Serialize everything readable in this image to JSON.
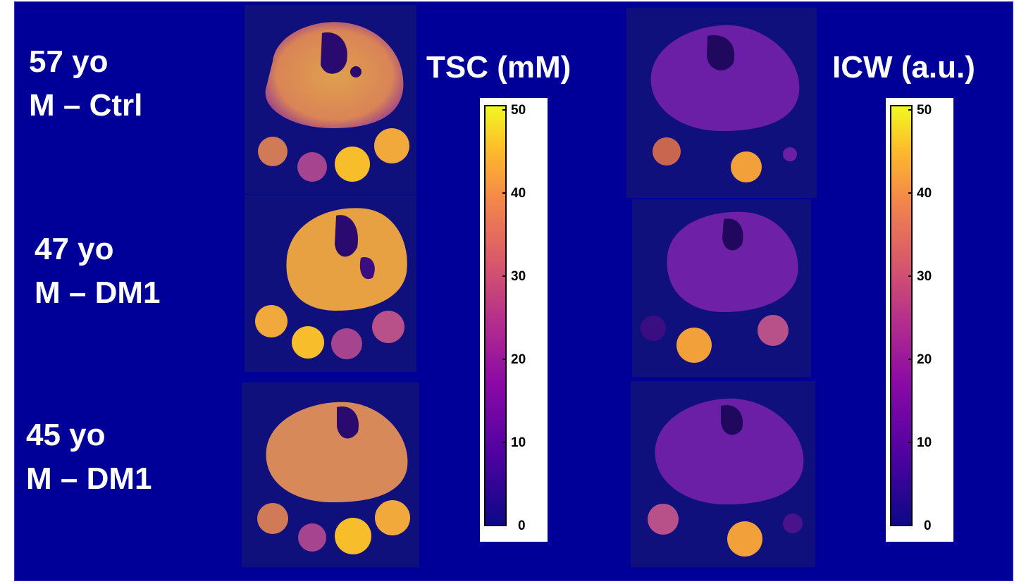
{
  "rows": [
    {
      "age": "57 yo",
      "group": "M – Ctrl"
    },
    {
      "age": "47 yo",
      "group": "M – DM1"
    },
    {
      "age": "45 yo",
      "group": "M – DM1"
    }
  ],
  "colorbars": [
    {
      "title": "TSC (mM)",
      "ticks": [
        "50",
        "40",
        "30",
        "20",
        "10",
        "0"
      ]
    },
    {
      "title": "ICW (a.u.)",
      "ticks": [
        "50",
        "40",
        "30",
        "20",
        "10",
        "0"
      ]
    }
  ],
  "colors": {
    "slide_background": "#000099",
    "colormap": [
      "#0d0887",
      "#5302a3",
      "#8b0aa5",
      "#b83289",
      "#db5c68",
      "#f48849",
      "#febd2a",
      "#f0f921"
    ]
  }
}
